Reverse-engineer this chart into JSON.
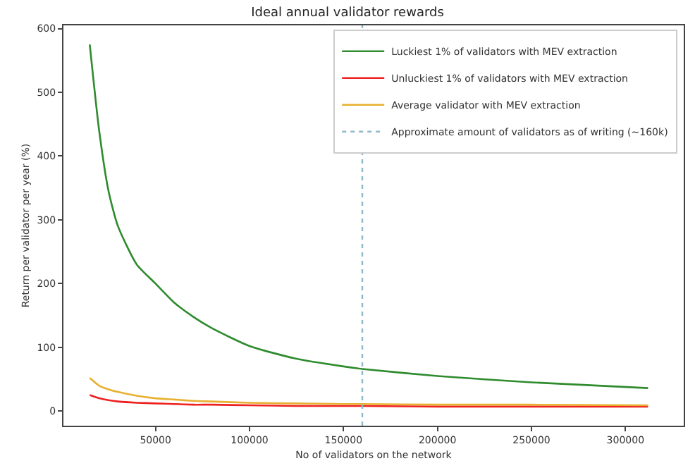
{
  "chart_data": {
    "type": "line",
    "title": "Ideal annual validator rewards",
    "xlabel": "No of validators on the network",
    "ylabel": "Return per validator per year (%)",
    "x": [
      15000,
      20000,
      25000,
      30000,
      40000,
      50000,
      60000,
      70000,
      80000,
      100000,
      125000,
      150000,
      160000,
      200000,
      250000,
      312000
    ],
    "series": [
      {
        "name": "Luckiest 1% of validators with MEV extraction",
        "color": "#2e8b2e",
        "values": [
          575,
          440,
          345,
          290,
          230,
          200,
          170,
          148,
          130,
          102,
          82,
          70,
          66,
          55,
          45,
          36
        ]
      },
      {
        "name": "Unluckiest 1% of validators with MEV extraction",
        "color": "#ee2020",
        "values": [
          25,
          20,
          17,
          15,
          13,
          12,
          11,
          10,
          10,
          9,
          8,
          8,
          8,
          7,
          7,
          7
        ]
      },
      {
        "name": "Average validator with MEV extraction",
        "color": "#e8b030",
        "values": [
          52,
          40,
          34,
          30,
          24,
          20,
          18,
          16,
          15,
          13,
          12,
          11,
          11,
          10,
          10,
          9
        ]
      }
    ],
    "ref_lines": [
      {
        "axis": "x",
        "value": 160000,
        "label": "Approximate amount of validators as of writing (~160k)",
        "color": "#8fb8c8",
        "line_style": "dotted"
      }
    ],
    "xlim": [
      1000,
      331000
    ],
    "xticks": [
      50000,
      100000,
      150000,
      200000,
      250000,
      300000
    ],
    "ylim": [
      -23,
      605
    ],
    "yticks": [
      0,
      100,
      200,
      300,
      400,
      500,
      600
    ],
    "legend": "top right",
    "marker": "none",
    "line_style": "solid"
  }
}
